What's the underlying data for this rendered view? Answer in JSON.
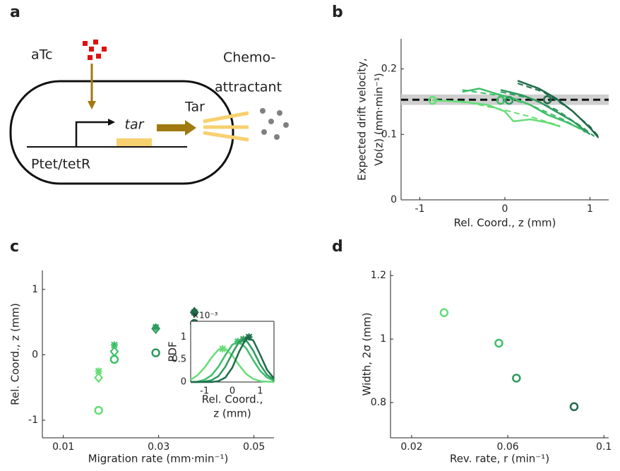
{
  "panel_labels": [
    "a",
    "b",
    "c",
    "d"
  ],
  "diagram": {
    "inducer": "aTc",
    "gene": "tar",
    "promoter": "Ptet/tetR",
    "receptor": "Tar",
    "attractant": [
      "Chemo-",
      "attractant"
    ]
  },
  "chart_data": [
    {
      "type": "line",
      "ylabel": [
        "Expected drift velocity,",
        "Vᴅ(z) (mm·min⁻¹)"
      ],
      "xlabel": "Rel. Coord., z (mm)",
      "xlim": [
        -1.22,
        1.22
      ],
      "ylim": [
        0,
        0.246
      ],
      "xticks": [
        -1,
        0,
        1
      ],
      "yticks": [
        0,
        0.1,
        0.2
      ],
      "reference_line": 0.153,
      "reference_band": [
        0.145,
        0.161
      ],
      "series": [
        {
          "color": "#66dd77",
          "x": [
            -0.85,
            -0.5,
            -0.2,
            0,
            0.1,
            0.3,
            0.5,
            0.65
          ],
          "values": [
            0.152,
            0.15,
            0.145,
            0.135,
            0.12,
            0.123,
            0.118,
            0.112
          ],
          "fit_x": [
            -0.85,
            -0.4,
            0,
            0.3,
            0.65
          ],
          "fit_values": [
            0.153,
            0.148,
            0.137,
            0.127,
            0.113
          ],
          "marker_x": -0.85,
          "marker_value": 0.152
        },
        {
          "color": "#3fbf6a",
          "x": [
            -0.5,
            -0.3,
            -0.1,
            0.1,
            0.3,
            0.5,
            0.7,
            0.95
          ],
          "values": [
            0.165,
            0.17,
            0.162,
            0.155,
            0.145,
            0.13,
            0.12,
            0.105
          ],
          "fit_x": [
            -0.5,
            -0.1,
            0.3,
            0.7,
            0.95
          ],
          "fit_values": [
            0.168,
            0.16,
            0.145,
            0.122,
            0.103
          ],
          "marker_x": -0.05,
          "marker_value": 0.152
        },
        {
          "color": "#2e9a5e",
          "x": [
            -0.05,
            0.2,
            0.4,
            0.6,
            0.8,
            1.0
          ],
          "values": [
            0.168,
            0.16,
            0.15,
            0.135,
            0.12,
            0.1
          ],
          "fit_x": [
            -0.05,
            0.3,
            0.6,
            0.9,
            1.05
          ],
          "fit_values": [
            0.165,
            0.155,
            0.138,
            0.112,
            0.097
          ],
          "marker_x": 0.05,
          "marker_value": 0.152
        },
        {
          "color": "#1f6b4a",
          "x": [
            0.15,
            0.4,
            0.6,
            0.8,
            1.0,
            1.1
          ],
          "values": [
            0.182,
            0.17,
            0.155,
            0.135,
            0.11,
            0.095
          ],
          "fit_x": [
            0.15,
            0.45,
            0.75,
            1.0,
            1.1
          ],
          "fit_values": [
            0.178,
            0.165,
            0.14,
            0.112,
            0.097
          ],
          "marker_x": 0.5,
          "marker_value": 0.153
        }
      ]
    },
    {
      "type": "scatter",
      "ylabel": [
        "Rel. Coord., z (mm)"
      ],
      "xlabel": "Migration rate (mm·min⁻¹)",
      "xlim": [
        0.0056,
        0.0542
      ],
      "ylim": [
        -1.27,
        1.29
      ],
      "xticks": [
        0.01,
        0.03,
        0.05
      ],
      "yticks": [
        -1,
        0,
        1
      ],
      "x": [
        0.0174,
        0.0207,
        0.0294,
        0.0375
      ],
      "colors": [
        "#66dd77",
        "#3fbf6a",
        "#2e9a5e",
        "#1f6b4a"
      ],
      "series": [
        {
          "marker": "asterisk",
          "values": [
            -0.25,
            0.15,
            0.42,
            0.65
          ]
        },
        {
          "marker": "diamond",
          "values": [
            -0.35,
            0.05,
            0.4,
            0.65
          ]
        },
        {
          "marker": "circle",
          "values": [
            -0.85,
            -0.07,
            0.03,
            0.48
          ]
        }
      ]
    },
    {
      "type": "line",
      "inset": true,
      "ylabel": [
        "PDF"
      ],
      "xlabel": [
        "Rel. Coord.,",
        "z (mm)"
      ],
      "y_exponent": "×10⁻³",
      "xlim": [
        -1.5,
        1.5
      ],
      "ylim": [
        0,
        1.35
      ],
      "xticks": [
        -1,
        0,
        1
      ],
      "yticks": [
        0,
        0.5,
        1
      ],
      "x": [
        -1.5,
        -1.25,
        -1,
        -0.75,
        -0.5,
        -0.25,
        0,
        0.25,
        0.5,
        0.75,
        1,
        1.25,
        1.5
      ],
      "series": [
        {
          "color": "#66dd77",
          "values": [
            0.05,
            0.15,
            0.32,
            0.54,
            0.72,
            0.74,
            0.59,
            0.37,
            0.18,
            0.07,
            0.02,
            0.01,
            0
          ],
          "peak_x": -0.35,
          "peak_value": 0.74
        },
        {
          "color": "#3fbf6a",
          "values": [
            0,
            0.01,
            0.05,
            0.15,
            0.34,
            0.6,
            0.83,
            0.9,
            0.75,
            0.49,
            0.25,
            0.1,
            0.03
          ],
          "peak_x": 0.2,
          "peak_value": 0.9
        },
        {
          "color": "#2e9a5e",
          "values": [
            0,
            0,
            0.01,
            0.04,
            0.13,
            0.34,
            0.64,
            0.9,
            0.93,
            0.7,
            0.39,
            0.16,
            0.05
          ],
          "peak_x": 0.4,
          "peak_value": 0.95
        },
        {
          "color": "#1f6b4a",
          "values": [
            0,
            0,
            0,
            0,
            0.02,
            0.1,
            0.32,
            0.68,
            0.97,
            0.93,
            0.61,
            0.27,
            0.08
          ],
          "peak_x": 0.6,
          "peak_value": 1
        }
      ]
    },
    {
      "type": "scatter",
      "ylabel": [
        "Width, 2σ (mm)"
      ],
      "xlabel": "Rev. rate, r (min⁻¹)",
      "xlim": [
        0.0112,
        0.102
      ],
      "ylim": [
        0.689,
        1.216
      ],
      "xticks": [
        0.02,
        0.06,
        0.1
      ],
      "yticks": [
        0.8,
        1,
        1.2
      ],
      "x": [
        0.0335,
        0.0563,
        0.0636,
        0.0876
      ],
      "colors": [
        "#66dd77",
        "#3fbf6a",
        "#2e9a5e",
        "#1f6b4a"
      ],
      "series": [
        {
          "marker": "circle",
          "values": [
            1.083,
            0.987,
            0.877,
            0.787
          ]
        }
      ]
    }
  ]
}
